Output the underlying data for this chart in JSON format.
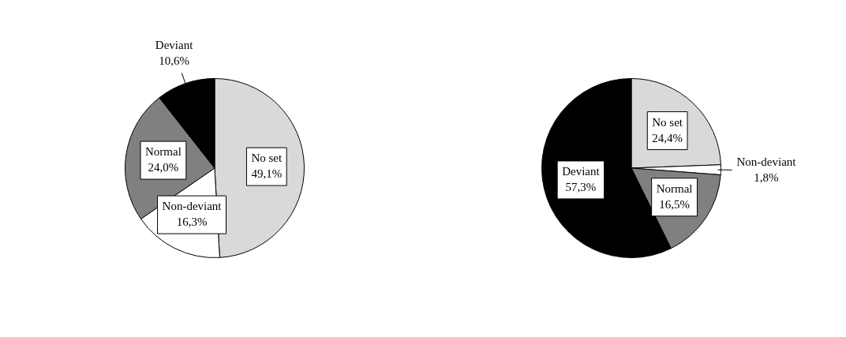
{
  "chart_data": [
    {
      "type": "pie",
      "categories": [
        "No set",
        "Non-deviant",
        "Normal",
        "Deviant"
      ],
      "values": [
        49.1,
        16.3,
        24.0,
        10.6
      ],
      "colors": [
        "#d9d9d9",
        "#ffffff",
        "#808080",
        "#000000"
      ],
      "value_labels": [
        "49,1%",
        "16,3%",
        "24,0%",
        "10,6%"
      ]
    },
    {
      "type": "pie",
      "categories": [
        "No set",
        "Non-deviant",
        "Normal",
        "Deviant"
      ],
      "values": [
        24.4,
        1.8,
        16.5,
        57.3
      ],
      "colors": [
        "#d9d9d9",
        "#ffffff",
        "#808080",
        "#000000"
      ],
      "value_labels": [
        "24,4%",
        "1,8%",
        "16,5%",
        "57,3%"
      ]
    }
  ]
}
